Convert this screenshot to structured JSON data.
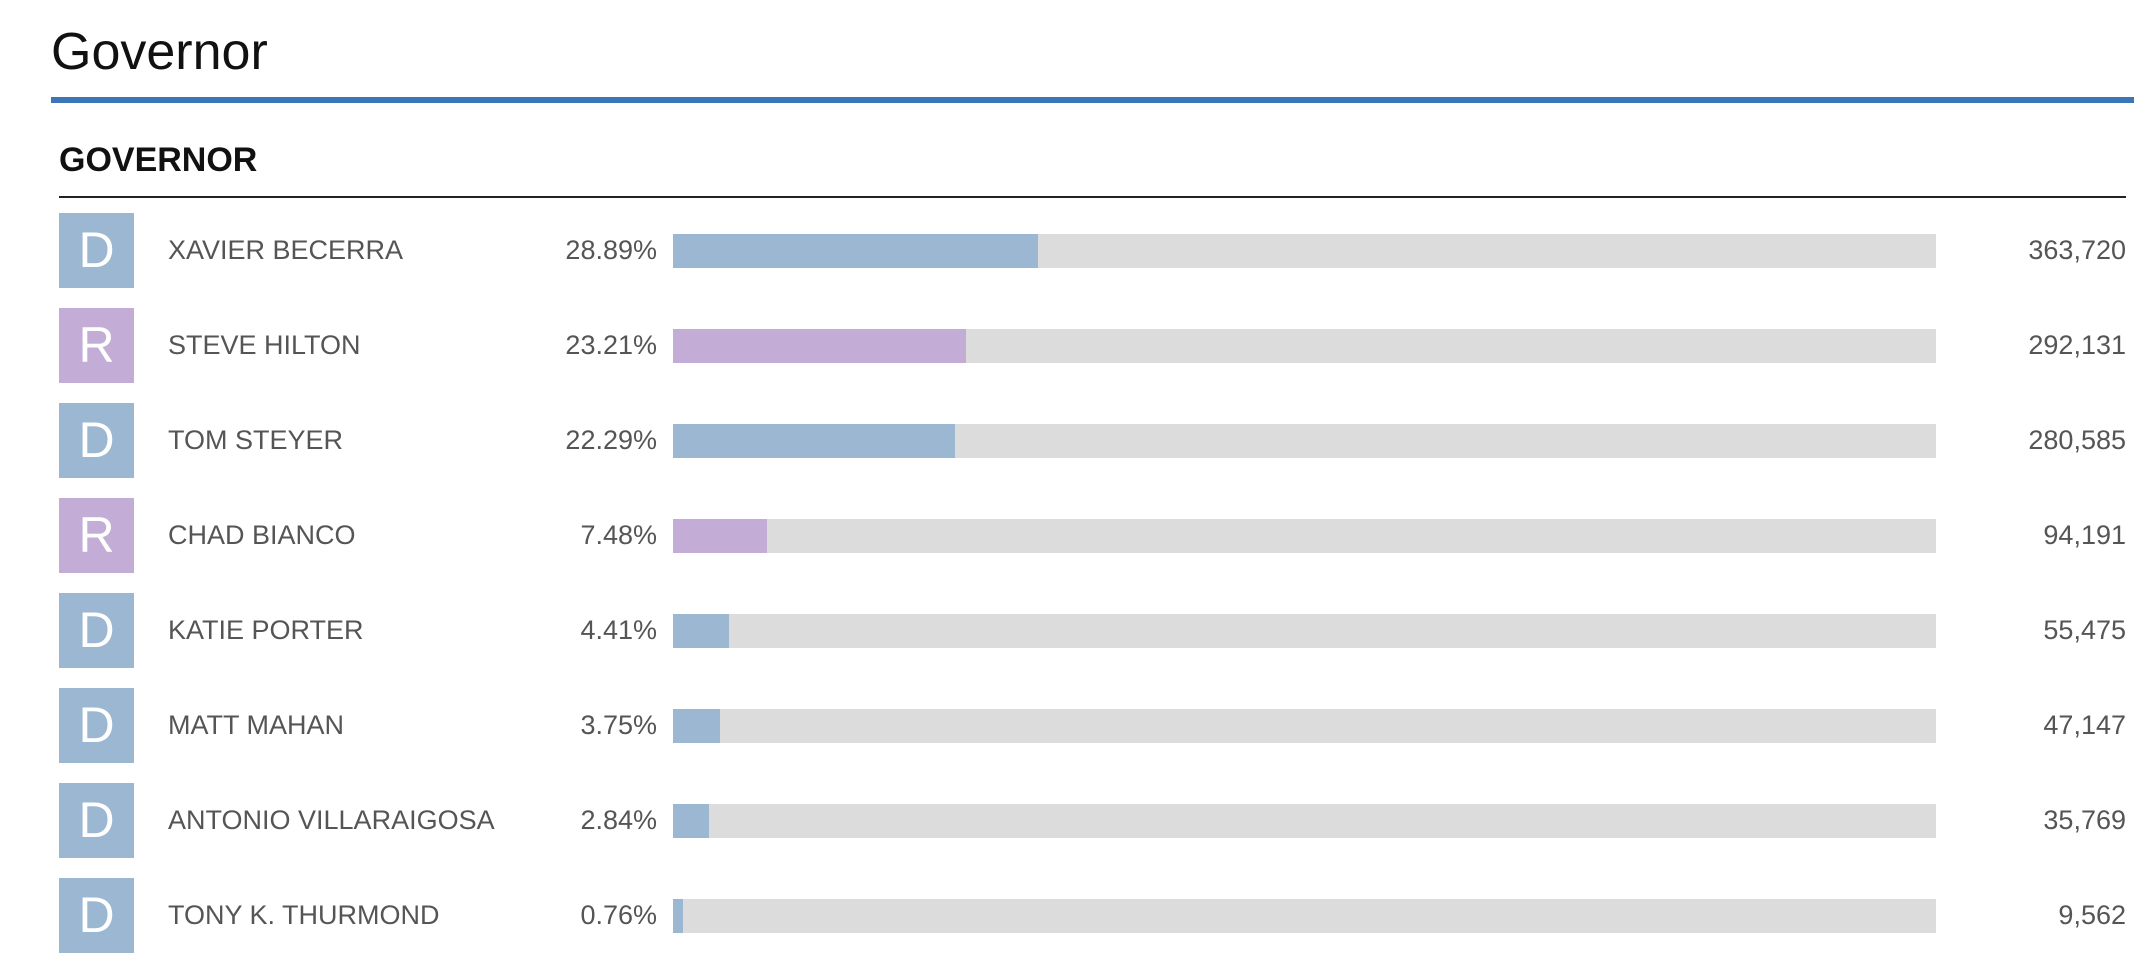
{
  "page_title": "Governor",
  "race": {
    "title": "GOVERNOR",
    "party_colors": {
      "D": "#9cb7d2",
      "R": "#c3acd6"
    },
    "candidates": [
      {
        "party": "D",
        "name": "XAVIER BECERRA",
        "pct_label": "28.89%",
        "pct": 28.89,
        "votes": "363,720"
      },
      {
        "party": "R",
        "name": "STEVE HILTON",
        "pct_label": "23.21%",
        "pct": 23.21,
        "votes": "292,131"
      },
      {
        "party": "D",
        "name": "TOM STEYER",
        "pct_label": "22.29%",
        "pct": 22.29,
        "votes": "280,585"
      },
      {
        "party": "R",
        "name": "CHAD BIANCO",
        "pct_label": "7.48%",
        "pct": 7.48,
        "votes": "94,191"
      },
      {
        "party": "D",
        "name": "KATIE PORTER",
        "pct_label": "4.41%",
        "pct": 4.41,
        "votes": "55,475"
      },
      {
        "party": "D",
        "name": "MATT MAHAN",
        "pct_label": "3.75%",
        "pct": 3.75,
        "votes": "47,147"
      },
      {
        "party": "D",
        "name": "ANTONIO VILLARAIGOSA",
        "pct_label": "2.84%",
        "pct": 2.84,
        "votes": "35,769"
      },
      {
        "party": "D",
        "name": "TONY K. THURMOND",
        "pct_label": "0.76%",
        "pct": 0.76,
        "votes": "9,562"
      }
    ]
  }
}
